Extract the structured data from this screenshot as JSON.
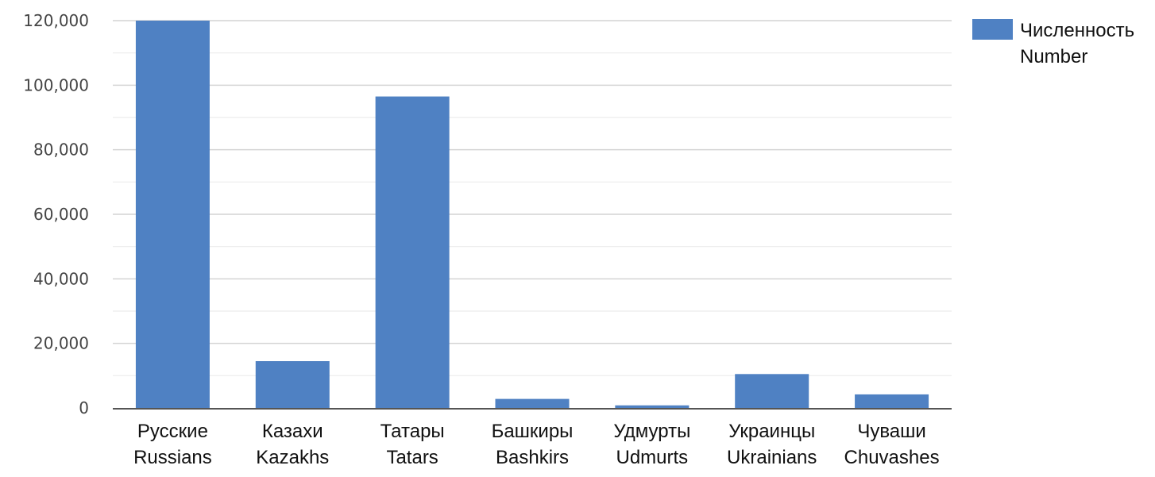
{
  "chart_data": {
    "type": "bar",
    "categories": [
      [
        "Русские",
        "Russians"
      ],
      [
        "Казахи",
        "Kazakhs"
      ],
      [
        "Татары",
        "Tatars"
      ],
      [
        "Башкиры",
        "Bashkirs"
      ],
      [
        "Удмурты",
        "Udmurts"
      ],
      [
        "Украинцы",
        "Ukrainians"
      ],
      [
        "Чуваши",
        "Chuvashes"
      ]
    ],
    "series": [
      {
        "name": [
          "Численность",
          "Number"
        ],
        "color": "#4f81c3",
        "values": [
          120000,
          14500,
          96500,
          2800,
          800,
          10500,
          4200
        ]
      }
    ],
    "ylim": [
      0,
      120000
    ],
    "yticks": [
      0,
      20000,
      40000,
      60000,
      80000,
      100000,
      120000
    ],
    "ytick_labels": [
      "0",
      "20,000",
      "40,000",
      "60,000",
      "80,000",
      "100,000",
      "120,000"
    ],
    "grid": true,
    "legend_position": "top-right",
    "title": "",
    "xlabel": "",
    "ylabel": ""
  }
}
